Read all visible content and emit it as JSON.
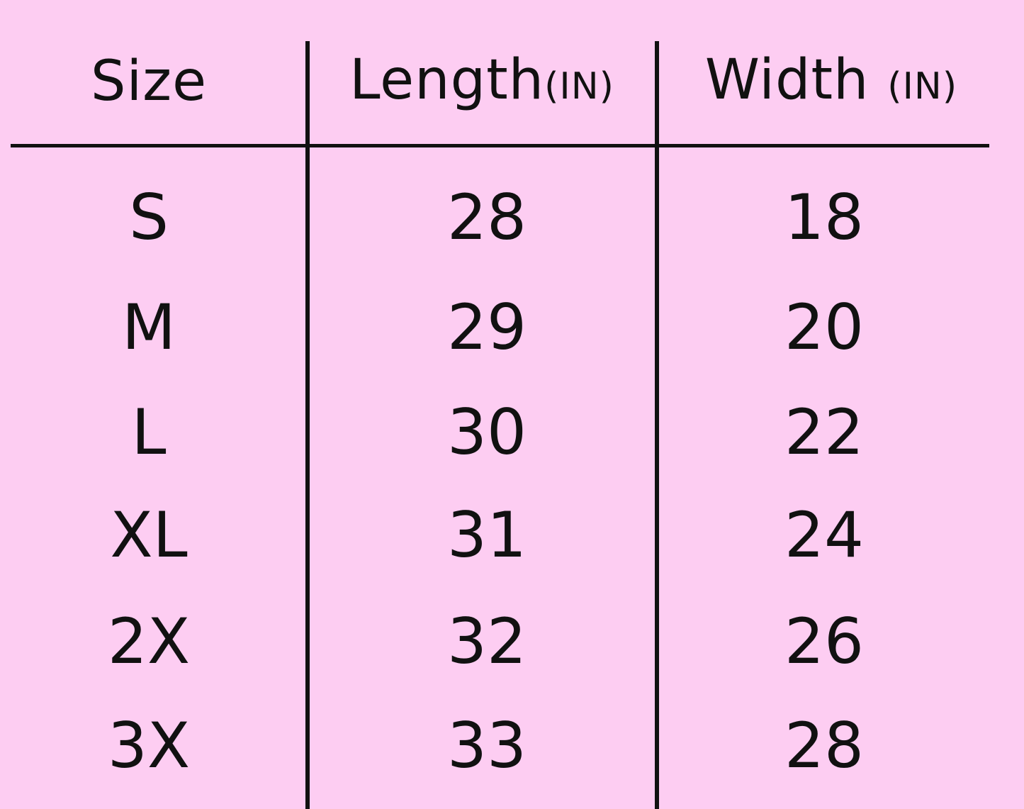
{
  "table": {
    "headers": [
      {
        "label": "Size",
        "unit": ""
      },
      {
        "label": "Length",
        "unit": "(IN)"
      },
      {
        "label": "Width",
        "unit": "(IN)"
      }
    ],
    "rows": [
      [
        "S",
        "28",
        "18"
      ],
      [
        "M",
        "29",
        "20"
      ],
      [
        "L",
        "30",
        "22"
      ],
      [
        "XL",
        "31",
        "24"
      ],
      [
        "2X",
        "32",
        "26"
      ],
      [
        "3X",
        "33",
        "28"
      ]
    ]
  },
  "colors": {
    "background": "#fdcdf2",
    "text": "#111111"
  }
}
